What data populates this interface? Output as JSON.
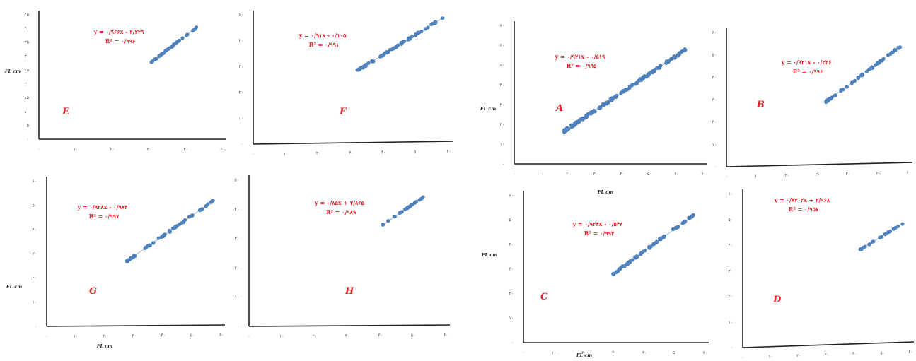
{
  "chart_data": [
    {
      "type": "scatter",
      "panel_label": "E",
      "equation": "y = ۰/۹۶۶x - ۲/۲۲۹",
      "r_squared": "R² = ۰/۹۹۶",
      "xlabel": "",
      "ylabel": "FL cm",
      "x_ticks": [
        "۰",
        "۱۰",
        "۲۰",
        "۳۰",
        "۴۰",
        "۵۰"
      ],
      "y_ticks": [
        "۰",
        "۵",
        "۱۰",
        "۱۵",
        "۲۰",
        "۲۵",
        "۳۰",
        "۳۵",
        "۴۰",
        "۴۵"
      ],
      "xlim": [
        0,
        50
      ],
      "ylim": [
        0,
        45
      ],
      "x_range": [
        30,
        42
      ],
      "y_range": [
        27,
        39
      ],
      "n_points": 40,
      "color": "#4f81bd"
    },
    {
      "type": "scatter",
      "panel_label": "F",
      "equation": "y = ۰/۹۱x - ۰/۱۰۵",
      "r_squared": "R² = ۰/۹۹۱",
      "xlabel": "",
      "ylabel": "",
      "x_ticks": [
        "۰",
        "۱۰",
        "۲۰",
        "۳۰",
        "۴۰",
        "۵۰",
        "۶۰"
      ],
      "y_ticks": [
        "۰",
        "۱۰",
        "۲۰",
        "۳۰",
        "۴۰",
        "۵۰"
      ],
      "xlim": [
        0,
        60
      ],
      "ylim": [
        0,
        55
      ],
      "x_range": [
        31,
        57
      ],
      "y_range": [
        30,
        52
      ],
      "n_points": 60,
      "color": "#4f81bd"
    },
    {
      "type": "scatter",
      "panel_label": "G",
      "equation": "y = ۰/۹۲۸x - ۰/۹۸۴",
      "r_squared": "R² = ۰/۹۹۷",
      "xlabel": "FL cm",
      "ylabel": "FL cm",
      "x_ticks": [
        "۰",
        "۱۰",
        "۲۰",
        "۳۰",
        "۴۰",
        "۵۰",
        "۶۰"
      ],
      "y_ticks": [
        "۰",
        "۱۰",
        "۲۰",
        "۳۰",
        "۴۰",
        "۵۰",
        "۶۰"
      ],
      "xlim": [
        0,
        60
      ],
      "ylim": [
        0,
        62
      ],
      "x_range": [
        27,
        56
      ],
      "y_range": [
        27,
        52
      ],
      "n_points": 60,
      "color": "#4f81bd"
    },
    {
      "type": "scatter",
      "panel_label": "H",
      "equation": "y = ۰/۸۵x + ۲/۸۶۵",
      "r_squared": "R² = ۰/۹۸۹",
      "xlabel": "",
      "ylabel": "",
      "x_ticks": [
        "۰",
        "۱۰",
        "۲۰",
        "۳۰",
        "۴۰",
        "۵۰",
        "۶۰"
      ],
      "y_ticks": [
        "۰",
        "۱۰",
        "۲۰",
        "۳۰",
        "۴۰",
        "۵۰"
      ],
      "xlim": [
        0,
        60
      ],
      "ylim": [
        0,
        55
      ],
      "x_range": [
        40,
        52
      ],
      "y_range": [
        37,
        47
      ],
      "n_points": 25,
      "color": "#4f81bd"
    },
    {
      "type": "scatter",
      "panel_label": "A",
      "equation": "y = ۰/۹۲۱x - ۰/۵۱۹",
      "r_squared": "R² = ۰/۹۹۵",
      "xlabel": "FL cm",
      "ylabel": "FL cm",
      "x_ticks": [
        "۰",
        "۱۰",
        "۲۰",
        "۳۰",
        "۴۰",
        "۵۰",
        "۶۰",
        "۷۰"
      ],
      "y_ticks": [
        "۰",
        "۱۰",
        "۲۰",
        "۳۰",
        "۴۰",
        "۵۰",
        "۶۰",
        "۷۰"
      ],
      "xlim": [
        0,
        70
      ],
      "ylim": [
        0,
        70
      ],
      "x_range": [
        18,
        62
      ],
      "y_range": [
        16,
        56
      ],
      "n_points": 160,
      "color": "#4f81bd"
    },
    {
      "type": "scatter",
      "panel_label": "B",
      "equation": "y = ۰/۹۲۱x - ۰/۲۲۶",
      "r_squared": "R² = ۰/۹۹۶",
      "xlabel": "",
      "ylabel": "",
      "x_ticks": [
        "۰",
        "۱۰",
        "۲۰",
        "۳۰",
        "۴۰",
        "۵۰",
        "۶۰"
      ],
      "y_ticks": [
        "۰",
        "۱۰",
        "۲۰",
        "۳۰",
        "۴۰",
        "۵۰",
        "۶۰"
      ],
      "xlim": [
        0,
        60
      ],
      "ylim": [
        0,
        60
      ],
      "x_range": [
        32,
        56
      ],
      "y_range": [
        28,
        52
      ],
      "n_points": 60,
      "color": "#4f81bd"
    },
    {
      "type": "scatter",
      "panel_label": "C",
      "equation": "y = ۰/۹۲۴x - ۰/۵۴۴",
      "r_squared": "R² = ۰/۹۹۴",
      "xlabel": "FL cm",
      "ylabel": "FL cm",
      "x_ticks": [
        "۰",
        "۱۰",
        "۲۰",
        "۳۰",
        "۴۰",
        "۵۰",
        "۶۰"
      ],
      "y_ticks": [
        "۰",
        "۱۰",
        "۲۰",
        "۳۰",
        "۴۰",
        "۵۰",
        "۶۰"
      ],
      "xlim": [
        0,
        60
      ],
      "ylim": [
        0,
        62
      ],
      "x_range": [
        29,
        55
      ],
      "y_range": [
        28,
        52
      ],
      "n_points": 70,
      "color": "#4f81bd"
    },
    {
      "type": "scatter",
      "panel_label": "D",
      "equation": "y = ۰/۸۳۰۲x + ۲/۹۶۸",
      "r_squared": "R² = ۰/۹۵۷",
      "xlabel": "",
      "ylabel": "",
      "x_ticks": [
        "۰",
        "۱۰",
        "۲۰",
        "۳۰",
        "۴۰",
        "۵۰",
        "۶۰"
      ],
      "y_ticks": [
        "۰",
        "۱۰",
        "۲۰",
        "۳۰",
        "۴۰",
        "۵۰",
        "۶۰"
      ],
      "xlim": [
        0,
        60
      ],
      "ylim": [
        0,
        60
      ],
      "x_range": [
        41,
        56
      ],
      "y_range": [
        37,
        47
      ],
      "n_points": 25,
      "color": "#4f81bd"
    }
  ]
}
